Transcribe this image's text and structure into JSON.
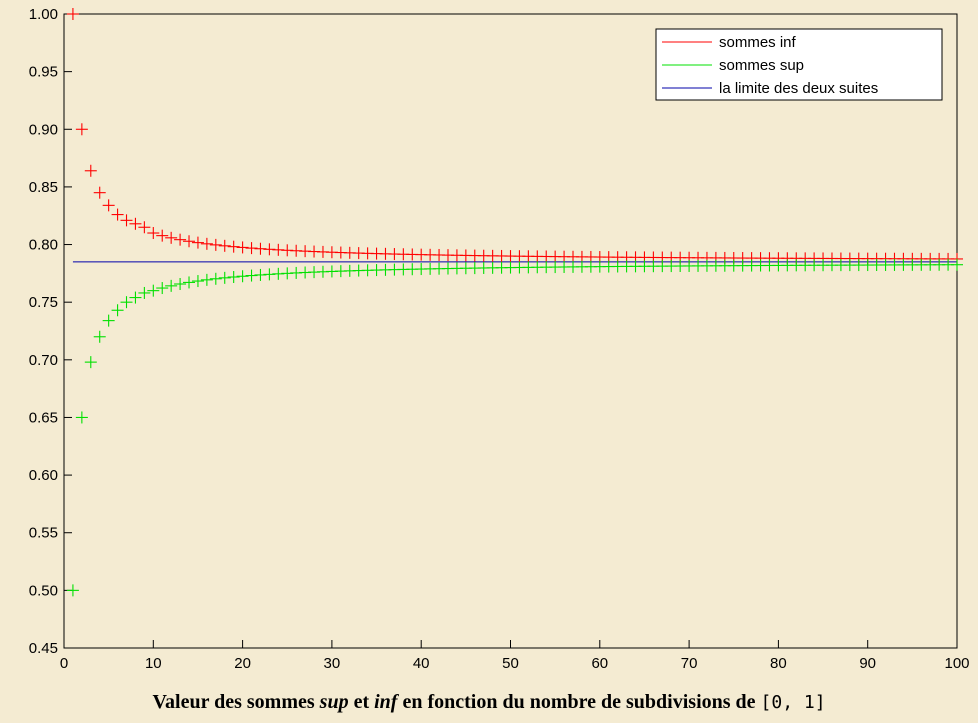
{
  "chart_data": {
    "type": "scatter",
    "caption": {
      "part1": "Valeur des sommes ",
      "sup": "sup",
      "part2": " et ",
      "inf": "inf",
      "part3": " en fonction du nombre de subdivisions de ",
      "interval": "[0, 1]"
    },
    "xlim": [
      0,
      100
    ],
    "ylim": [
      0.45,
      1.0
    ],
    "x_ticks": [
      0,
      10,
      20,
      30,
      40,
      50,
      60,
      70,
      80,
      90,
      100
    ],
    "x_tick_labels": [
      "0",
      "10",
      "20",
      "30",
      "40",
      "50",
      "60",
      "70",
      "80",
      "90",
      "100"
    ],
    "y_ticks": [
      0.45,
      0.5,
      0.55,
      0.6,
      0.65,
      0.7,
      0.75,
      0.8,
      0.85,
      0.9,
      0.95,
      1.0
    ],
    "y_tick_labels": [
      "0.45",
      "0.50",
      "0.55",
      "0.60",
      "0.65",
      "0.70",
      "0.75",
      "0.80",
      "0.85",
      "0.90",
      "0.95",
      "1.00"
    ],
    "grid": false,
    "legend_position": "top-right",
    "series": [
      {
        "name": "sommes inf",
        "color": "#ff0000",
        "marker": "plus",
        "x_start": 1,
        "x_end": 100,
        "sample_values": [
          1.0,
          0.9,
          0.864,
          0.845,
          0.834,
          0.826,
          0.821,
          0.818,
          0.815,
          0.81
        ]
      },
      {
        "name": "sommes sup",
        "color": "#00e000",
        "marker": "plus",
        "x_start": 1,
        "x_end": 100,
        "sample_values": [
          0.5,
          0.65,
          0.698,
          0.72,
          0.734,
          0.743,
          0.75,
          0.754,
          0.758,
          0.76
        ]
      },
      {
        "name": "la limite des deux suites",
        "color": "#0000aa",
        "marker": "line",
        "y_value": 0.785
      }
    ]
  }
}
